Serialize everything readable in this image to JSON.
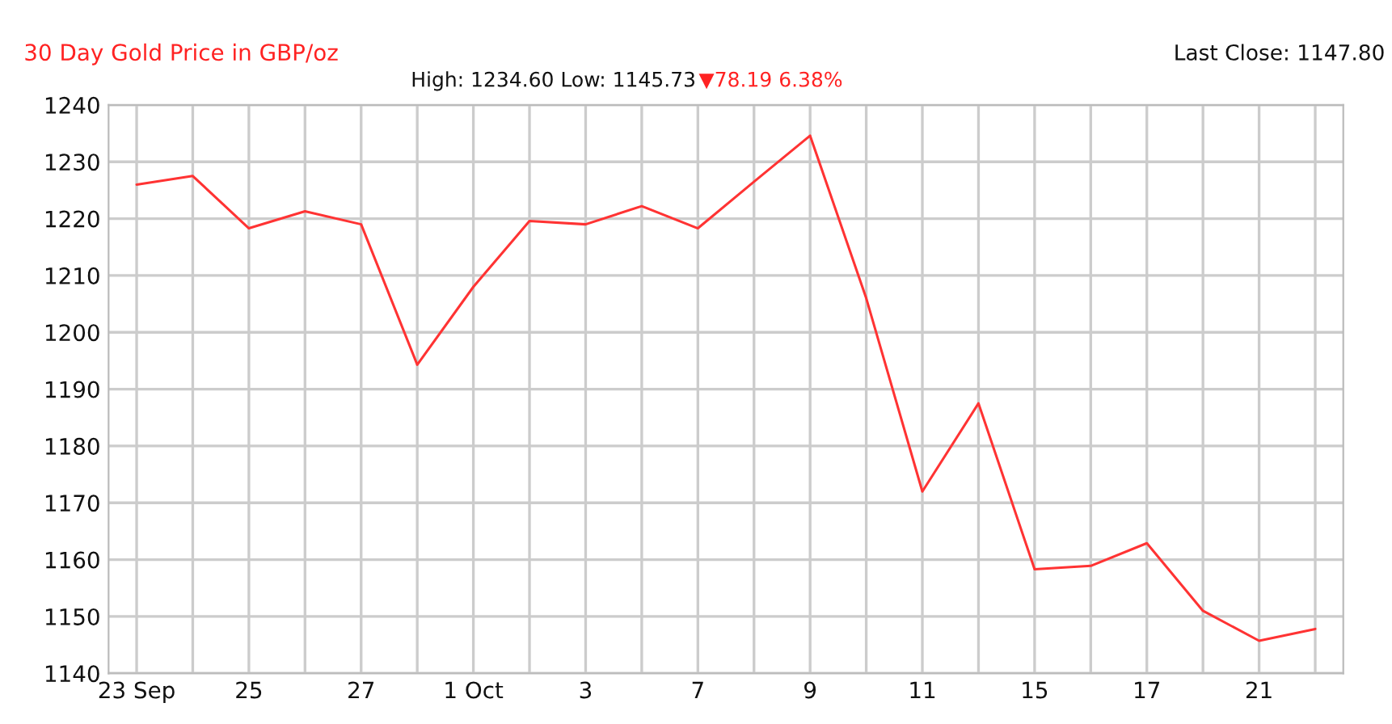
{
  "chart_data": {
    "type": "line",
    "title": "30 Day Gold Price in GBP/oz",
    "subtitle": "High: 1234.60 Low: 1145.73",
    "annotations": [
      "▼78.19 6.38%",
      "Last Close: 1147.80"
    ],
    "categories": [
      "23 Sep",
      null,
      "25",
      null,
      "27",
      null,
      "1 Oct",
      null,
      "3",
      null,
      "7",
      null,
      "9",
      null,
      "11",
      null,
      "15",
      null,
      "17",
      null,
      "21",
      null
    ],
    "series": [
      {
        "color": "#ff3333",
        "values": [
          1226,
          1227.5,
          1218.3,
          1221.3,
          1219,
          1194.3,
          1208,
          1219.6,
          1219,
          1222.2,
          1218.3,
          1226.5,
          1234.6,
          1206,
          1172,
          1187.5,
          1158.3,
          1158.9,
          1162.9,
          1151,
          1145.73,
          1147.8
        ]
      }
    ],
    "ylim": [
      1140,
      1240
    ],
    "yticks": [
      1140,
      1150,
      1160,
      1170,
      1180,
      1190,
      1200,
      1210,
      1220,
      1230,
      1240
    ],
    "grid": true,
    "legend": false,
    "marker": "none",
    "line_style": "solid"
  }
}
